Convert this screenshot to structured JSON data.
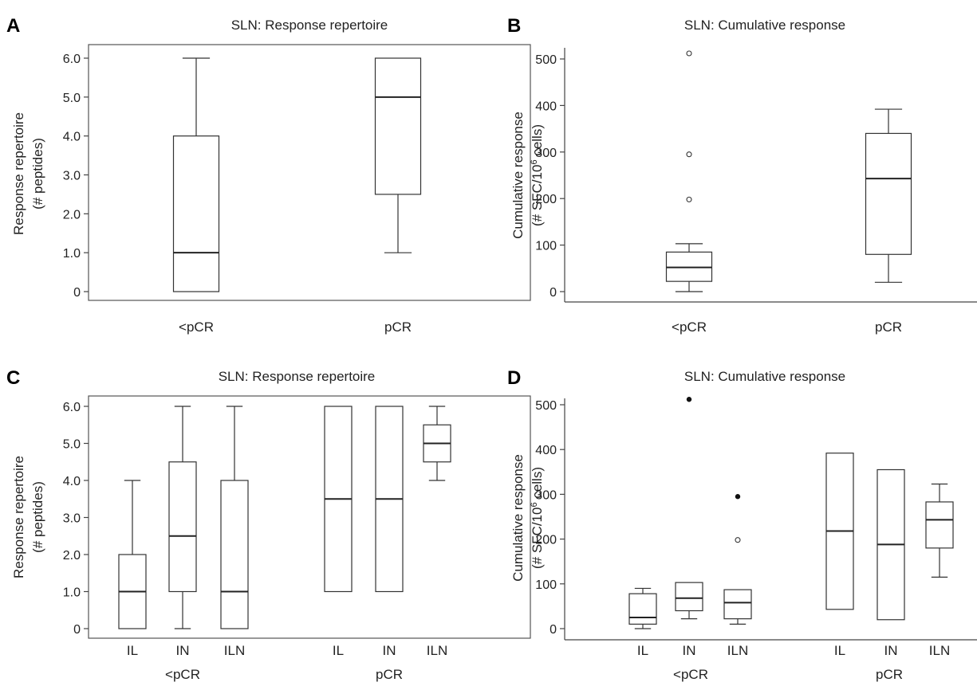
{
  "chart_data": [
    {
      "panel": "A",
      "type": "box",
      "title": "SLN: Response repertoire",
      "ylabel_line1": "Response repertoire",
      "ylabel_line2": "(# peptides)",
      "ylim": [
        0,
        6
      ],
      "yticks": [
        "0",
        "1.0",
        "2.0",
        "3.0",
        "4.0",
        "5.0",
        "6.0"
      ],
      "groups": [
        "<pCR",
        "pCR"
      ],
      "series": [
        {
          "group": "<pCR",
          "label": "",
          "min": 0,
          "q1": 0,
          "median": 1.0,
          "q3": 4.0,
          "max": 6.0,
          "outliers": [],
          "extremes": []
        },
        {
          "group": "pCR",
          "label": "",
          "min": 1.0,
          "q1": 2.5,
          "median": 5.0,
          "q3": 6.0,
          "max": 6.0,
          "outliers": [],
          "extremes": []
        }
      ]
    },
    {
      "panel": "B",
      "type": "box",
      "title": "SLN: Cumulative response",
      "ylabel_line1": "Cumulative response",
      "ylabel_line2_prefix": "(# SFC/10",
      "ylabel_line2_sup": "6",
      "ylabel_line2_suffix": " cells)",
      "ylim": [
        0,
        500
      ],
      "yticks": [
        "0",
        "100",
        "200",
        "300",
        "400",
        "500"
      ],
      "groups": [
        "<pCR",
        "pCR"
      ],
      "series": [
        {
          "group": "<pCR",
          "label": "",
          "min": 0,
          "q1": 22,
          "median": 52,
          "q3": 85,
          "max": 103,
          "outliers": [
            198,
            295,
            512
          ],
          "extremes": []
        },
        {
          "group": "pCR",
          "label": "",
          "min": 20,
          "q1": 80,
          "median": 243,
          "q3": 340,
          "max": 392,
          "outliers": [],
          "extremes": []
        }
      ]
    },
    {
      "panel": "C",
      "type": "box",
      "title": "SLN: Response repertoire",
      "ylabel_line1": "Response repertoire",
      "ylabel_line2": "(# peptides)",
      "ylim": [
        0,
        6
      ],
      "yticks": [
        "0",
        "1.0",
        "2.0",
        "3.0",
        "4.0",
        "5.0",
        "6.0"
      ],
      "groups": [
        "<pCR",
        "pCR"
      ],
      "series": [
        {
          "group": "<pCR",
          "label": "IL",
          "min": 0,
          "q1": 0,
          "median": 1.0,
          "q3": 2.0,
          "max": 4.0,
          "outliers": [],
          "extremes": []
        },
        {
          "group": "<pCR",
          "label": "IN",
          "min": 0,
          "q1": 1.0,
          "median": 2.5,
          "q3": 4.5,
          "max": 6.0,
          "outliers": [],
          "extremes": []
        },
        {
          "group": "<pCR",
          "label": "ILN",
          "min": 0,
          "q1": 0,
          "median": 1.0,
          "q3": 4.0,
          "max": 6.0,
          "outliers": [],
          "extremes": []
        },
        {
          "group": "pCR",
          "label": "IL",
          "min": 1.0,
          "q1": 1.0,
          "median": 3.5,
          "q3": 6.0,
          "max": 6.0,
          "outliers": [],
          "extremes": []
        },
        {
          "group": "pCR",
          "label": "IN",
          "min": 1.0,
          "q1": 1.0,
          "median": 3.5,
          "q3": 6.0,
          "max": 6.0,
          "outliers": [],
          "extremes": []
        },
        {
          "group": "pCR",
          "label": "ILN",
          "min": 4.0,
          "q1": 4.5,
          "median": 5.0,
          "q3": 5.5,
          "max": 6.0,
          "outliers": [],
          "extremes": []
        }
      ]
    },
    {
      "panel": "D",
      "type": "box",
      "title": "SLN: Cumulative response",
      "ylabel_line1": "Cumulative response",
      "ylabel_line2_prefix": "(# SFC/10",
      "ylabel_line2_sup": "6",
      "ylabel_line2_suffix": " cells)",
      "ylim": [
        0,
        500
      ],
      "yticks": [
        "0",
        "100",
        "200",
        "300",
        "400",
        "500"
      ],
      "groups": [
        "<pCR",
        "pCR"
      ],
      "series": [
        {
          "group": "<pCR",
          "label": "IL",
          "min": 0,
          "q1": 10,
          "median": 25,
          "q3": 78,
          "max": 90,
          "outliers": [],
          "extremes": []
        },
        {
          "group": "<pCR",
          "label": "IN",
          "min": 22,
          "q1": 40,
          "median": 68,
          "q3": 103,
          "max": 103,
          "outliers": [],
          "extremes": [
            512
          ]
        },
        {
          "group": "<pCR",
          "label": "ILN",
          "min": 10,
          "q1": 22,
          "median": 58,
          "q3": 87,
          "max": 87,
          "outliers": [
            198
          ],
          "extremes": [
            295
          ]
        },
        {
          "group": "pCR",
          "label": "IL",
          "min": 43,
          "q1": 43,
          "median": 218,
          "q3": 392,
          "max": 392,
          "outliers": [],
          "extremes": []
        },
        {
          "group": "pCR",
          "label": "IN",
          "min": 20,
          "q1": 20,
          "median": 188,
          "q3": 355,
          "max": 355,
          "outliers": [],
          "extremes": []
        },
        {
          "group": "pCR",
          "label": "ILN",
          "min": 115,
          "q1": 180,
          "median": 243,
          "q3": 283,
          "max": 323,
          "outliers": [],
          "extremes": []
        }
      ]
    }
  ]
}
